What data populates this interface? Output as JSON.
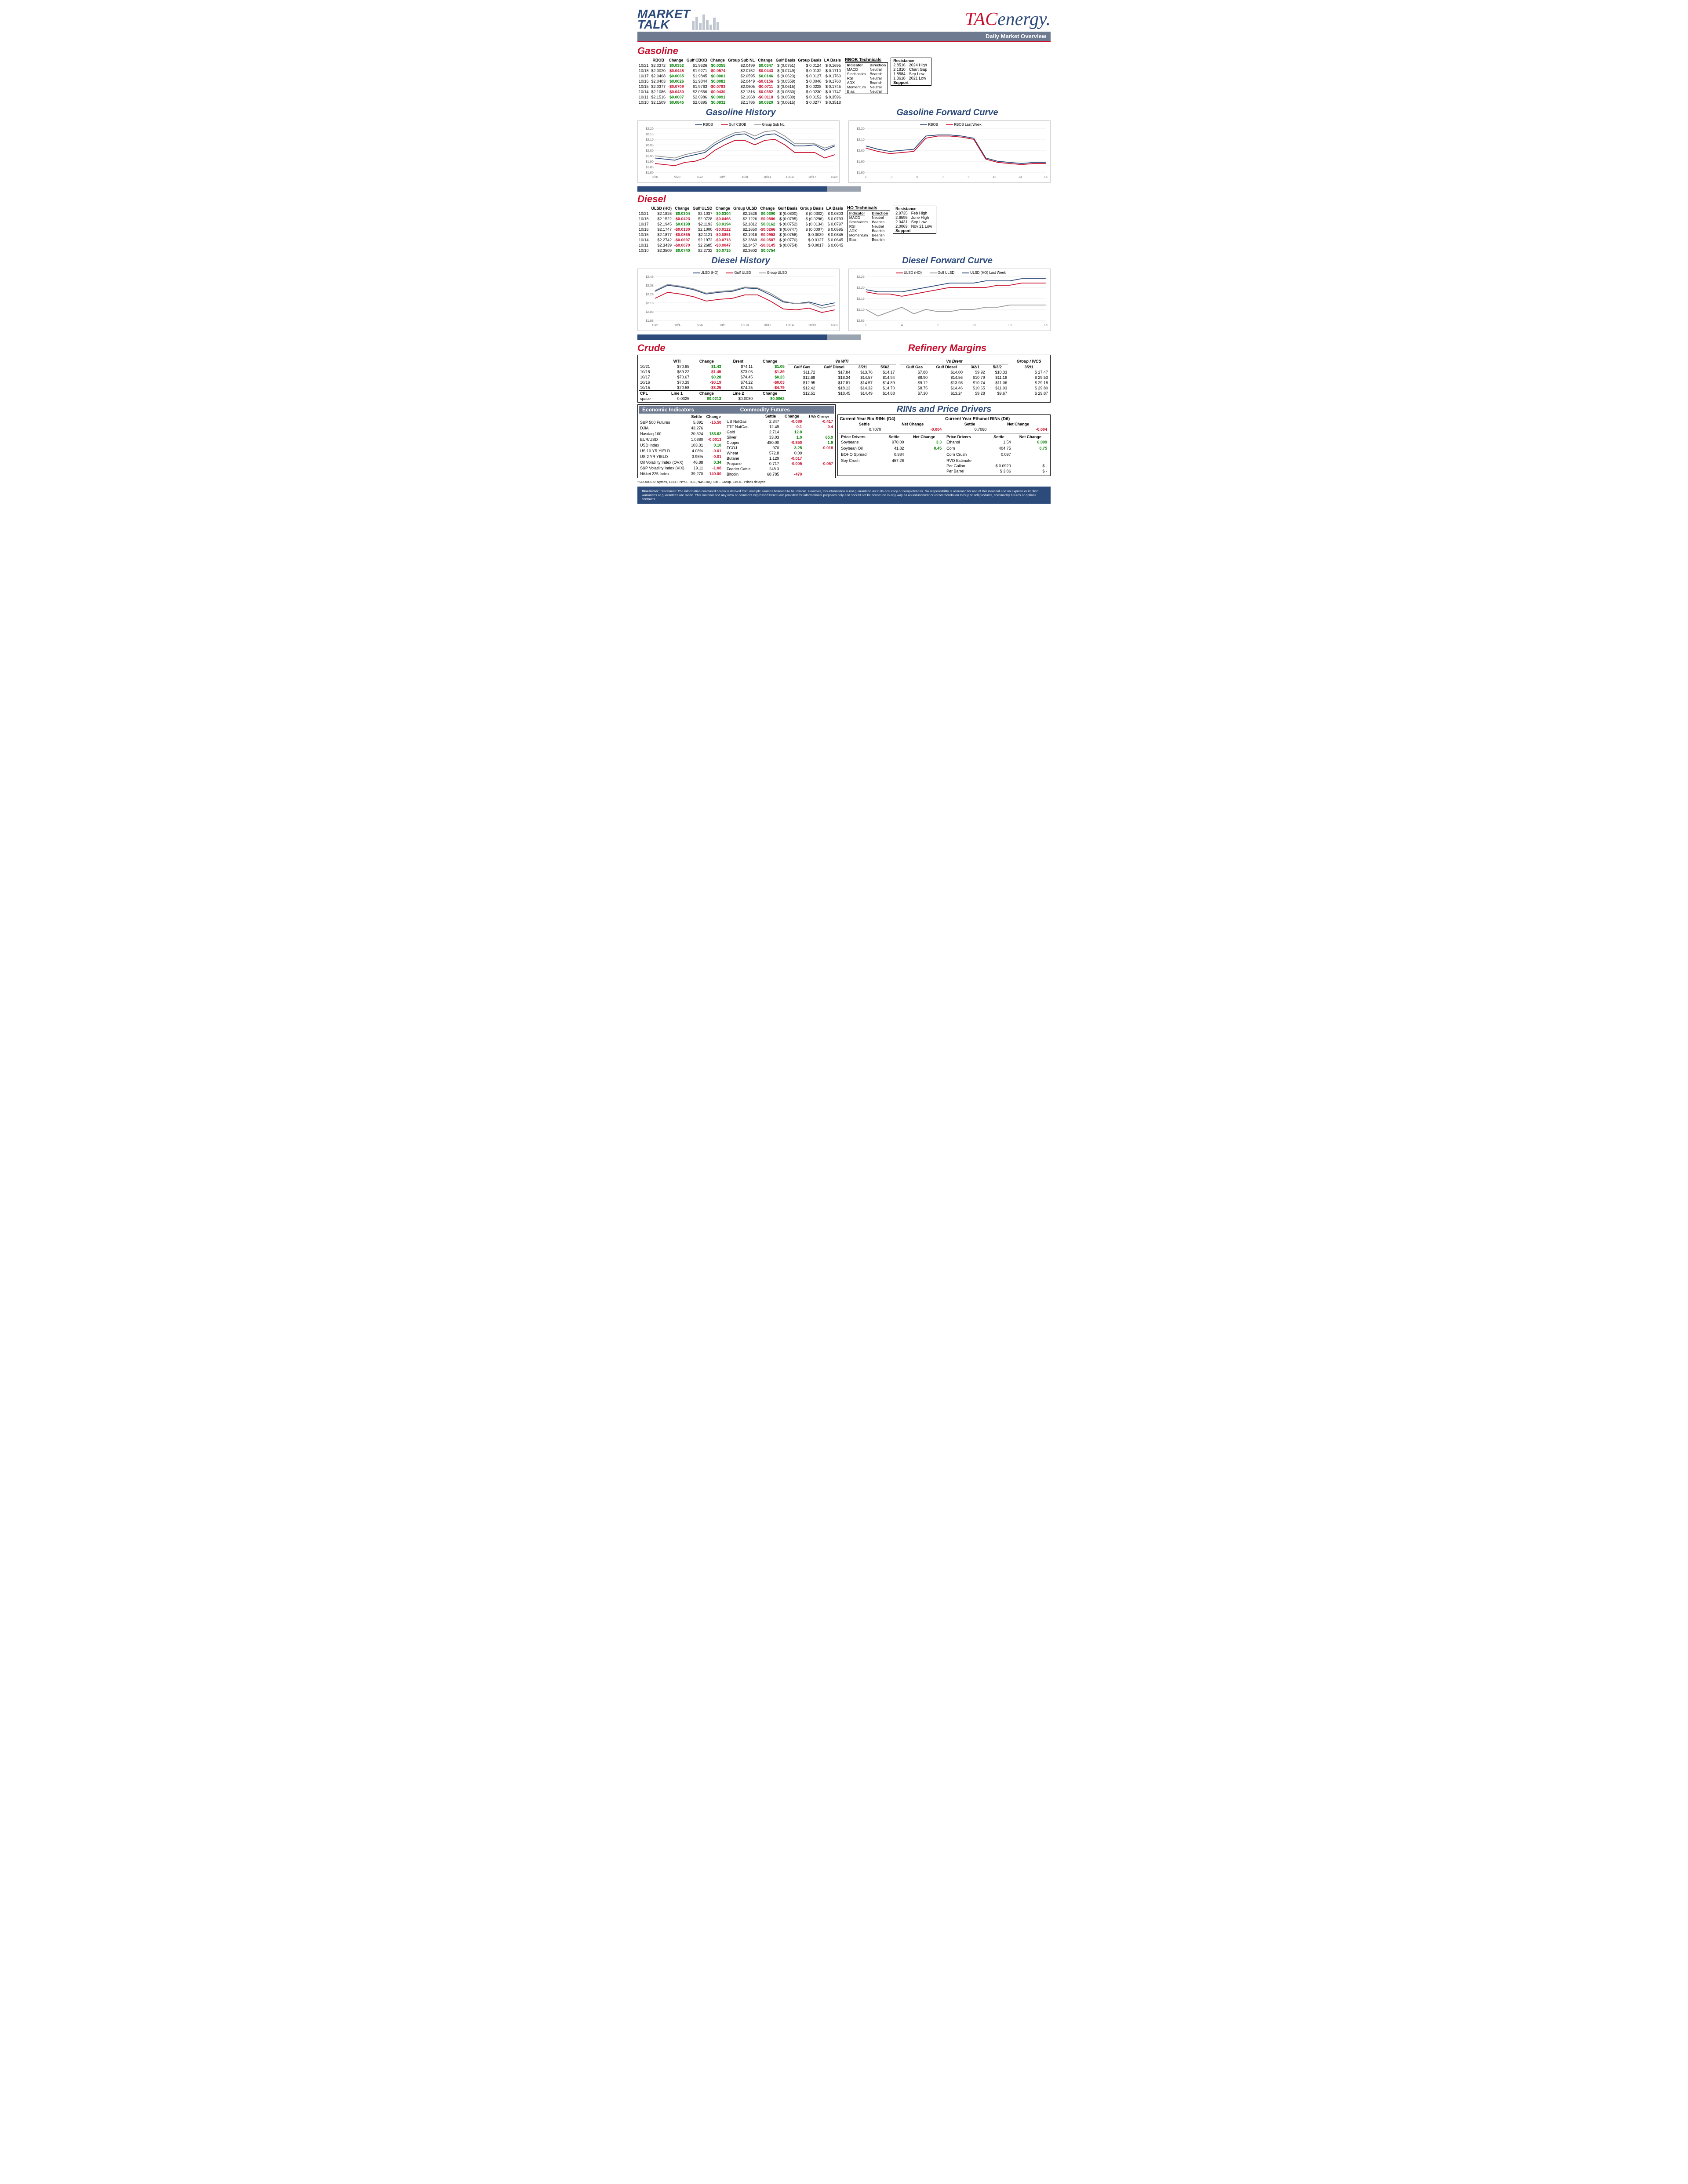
{
  "header": {
    "market_talk_line1": "MARKET",
    "market_talk_line2": "TALK",
    "tac_part1": "TAC",
    "tac_part2": "energy",
    "subtitle": "Daily Market Overview"
  },
  "gasoline": {
    "title": "Gasoline",
    "headers": [
      "",
      "RBOB",
      "Change",
      "Gulf CBOB",
      "Change",
      "Group Sub NL",
      "Change",
      "Gulf Basis",
      "Group Basis",
      "LA Basis"
    ],
    "rows": [
      [
        "10/21",
        "$2.0372",
        "$0.0352",
        "$1.9626",
        "$0.0355",
        "$2.0499",
        "$0.0347",
        "$  (0.0751)",
        "$      0.0124",
        "$   0.1695"
      ],
      [
        "10/18",
        "$2.0020",
        "-$0.0448",
        "$1.9271",
        "-$0.0574",
        "$2.0152",
        "-$0.0443",
        "$  (0.0749)",
        "$      0.0132",
        "$   0.1710"
      ],
      [
        "10/17",
        "$2.0468",
        "$0.0065",
        "$1.9845",
        "$0.0001",
        "$2.0595",
        "$0.0146",
        "$  (0.0623)",
        "$      0.0127",
        "$   0.1760"
      ],
      [
        "10/16",
        "$2.0403",
        "$0.0026",
        "$1.9844",
        "$0.0081",
        "$2.0449",
        "-$0.0156",
        "$  (0.0559)",
        "$      0.0046",
        "$   0.1760"
      ],
      [
        "10/15",
        "$2.0377",
        "-$0.0709",
        "$1.9763",
        "-$0.0793",
        "$2.0605",
        "-$0.0711",
        "$  (0.0615)",
        "$      0.0228",
        "$   0.1745"
      ],
      [
        "10/14",
        "$2.1086",
        "-$0.0430",
        "$2.0556",
        "-$0.0430",
        "$2.1316",
        "-$0.0352",
        "$  (0.0530)",
        "$      0.0230",
        "$   0.1747"
      ],
      [
        "10/11",
        "$2.1516",
        "$0.0007",
        "$2.0986",
        "$0.0091",
        "$2.1668",
        "-$0.0118",
        "$  (0.0530)",
        "$      0.0152",
        "$   0.3596"
      ],
      [
        "10/10",
        "$2.1509",
        "$0.0845",
        "$2.0895",
        "$0.0832",
        "$2.1786",
        "$0.0920",
        "$  (0.0615)",
        "$      0.0277",
        "$   0.3518"
      ]
    ],
    "change_signs": [
      [
        "p",
        "p",
        "p"
      ],
      [
        "n",
        "n",
        "n"
      ],
      [
        "p",
        "p",
        "p"
      ],
      [
        "p",
        "p",
        "n"
      ],
      [
        "n",
        "n",
        "n"
      ],
      [
        "n",
        "n",
        "n"
      ],
      [
        "p",
        "p",
        "n"
      ],
      [
        "p",
        "p",
        "p"
      ]
    ],
    "tech_title": "RBOB Technicals",
    "tech": [
      [
        "Indicator",
        "Direction"
      ],
      [
        "MACD",
        "Neutral"
      ],
      [
        "Stochastics",
        "Bearish"
      ],
      [
        "RSI",
        "Neutral"
      ],
      [
        "ADX",
        "Bearish"
      ],
      [
        "Momentum",
        "Neutral"
      ],
      [
        "Bias:",
        "Neutral"
      ]
    ],
    "resistance": [
      [
        "Resistance",
        ""
      ],
      [
        "2.8516",
        "2024 High"
      ],
      [
        "2.1810",
        "Chart Gap"
      ],
      [
        "1.8584",
        "Sep Low"
      ],
      [
        "1.3618",
        "2021 Low"
      ],
      [
        "Support",
        ""
      ]
    ]
  },
  "gas_history": {
    "title": "Gasoline History",
    "series": [
      {
        "name": "RBOB",
        "color": "#2c4a7a",
        "data": [
          1.93,
          1.92,
          1.91,
          1.94,
          1.96,
          1.98,
          2.05,
          2.1,
          2.14,
          2.15,
          2.1,
          2.14,
          2.15,
          2.1,
          2.04,
          2.04,
          2.05,
          2.0,
          2.04
        ]
      },
      {
        "name": "Gulf CBOB",
        "color": "#c8102e",
        "data": [
          1.88,
          1.87,
          1.86,
          1.89,
          1.9,
          1.93,
          2.0,
          2.05,
          2.09,
          2.09,
          2.05,
          2.09,
          2.1,
          2.05,
          1.98,
          1.98,
          1.98,
          1.93,
          1.96
        ]
      },
      {
        "name": "Group Sub NL",
        "color": "#999999",
        "data": [
          1.95,
          1.94,
          1.93,
          1.96,
          1.98,
          2.0,
          2.07,
          2.12,
          2.16,
          2.17,
          2.13,
          2.17,
          2.18,
          2.13,
          2.06,
          2.06,
          2.06,
          2.02,
          2.05
        ]
      }
    ],
    "ylim": [
      1.8,
      2.2
    ],
    "xlabels": [
      "9/26",
      "9/29",
      "10/2",
      "10/5",
      "10/8",
      "10/11",
      "10/14",
      "10/17",
      "10/20"
    ],
    "yticks": [
      1.8,
      1.85,
      1.9,
      1.95,
      2.0,
      2.05,
      2.1,
      2.15,
      2.2
    ]
  },
  "gas_forward": {
    "title": "Gasoline Forward Curve",
    "series": [
      {
        "name": "RBOB",
        "color": "#2c4a7a",
        "data": [
          2.04,
          2.01,
          1.99,
          2.0,
          2.01,
          2.13,
          2.14,
          2.14,
          2.13,
          2.11,
          1.93,
          1.9,
          1.89,
          1.88,
          1.89,
          1.89
        ]
      },
      {
        "name": "RBOB Last Week",
        "color": "#c8102e",
        "data": [
          2.02,
          1.99,
          1.97,
          1.98,
          1.99,
          2.11,
          2.13,
          2.13,
          2.12,
          2.1,
          1.92,
          1.89,
          1.88,
          1.87,
          1.88,
          1.88
        ]
      }
    ],
    "ylim": [
      1.8,
      2.2
    ],
    "xlabels": [
      "1",
      "3",
      "5",
      "7",
      "9",
      "11",
      "13",
      "15"
    ],
    "yticks": [
      1.8,
      1.9,
      2.0,
      2.1,
      2.2
    ]
  },
  "diesel": {
    "title": "Diesel",
    "headers": [
      "",
      "ULSD (HO)",
      "Change",
      "Gulf ULSD",
      "Change",
      "Group ULSD",
      "Change",
      "Gulf Basis",
      "Group Basis",
      "LA Basis"
    ],
    "rows": [
      [
        "10/21",
        "$2.1826",
        "$0.0304",
        "$2.1037",
        "$0.0304",
        "$2.1526",
        "$0.0300",
        "$  (0.0800)",
        "$    (0.0302)",
        "$   0.0803"
      ],
      [
        "10/18",
        "$2.1522",
        "-$0.0423",
        "$2.0728",
        "-$0.0466",
        "$2.1226",
        "-$0.0586",
        "$  (0.0795)",
        "$    (0.0296)",
        "$   0.0793"
      ],
      [
        "10/17",
        "$2.1945",
        "$0.0198",
        "$2.1193",
        "$0.0194",
        "$2.1812",
        "$0.0162",
        "$  (0.0752)",
        "$    (0.0134)",
        "$   0.0797"
      ],
      [
        "10/16",
        "$2.1747",
        "-$0.0130",
        "$2.1000",
        "-$0.0122",
        "$2.1650",
        "-$0.0266",
        "$  (0.0747)",
        "$    (0.0097)",
        "$   0.0595"
      ],
      [
        "10/15",
        "$2.1877",
        "-$0.0865",
        "$2.1121",
        "-$0.0851",
        "$2.1916",
        "-$0.0953",
        "$  (0.0756)",
        "$      0.0039",
        "$   0.0845"
      ],
      [
        "10/14",
        "$2.2742",
        "-$0.0697",
        "$2.1972",
        "-$0.0713",
        "$2.2869",
        "-$0.0587",
        "$  (0.0770)",
        "$      0.0127",
        "$   0.0645"
      ],
      [
        "10/11",
        "$2.3439",
        "-$0.0070",
        "$2.2685",
        "-$0.0047",
        "$2.3457",
        "-$0.0145",
        "$  (0.0754)",
        "$      0.0017",
        "$   0.0645"
      ],
      [
        "10/10",
        "$2.3509",
        "$0.0740",
        "$2.2732",
        "$0.0715",
        "$2.3602",
        "$0.0754",
        "",
        "",
        ""
      ]
    ],
    "change_signs": [
      [
        "p",
        "p",
        "p"
      ],
      [
        "n",
        "n",
        "n"
      ],
      [
        "p",
        "p",
        "p"
      ],
      [
        "n",
        "n",
        "n"
      ],
      [
        "n",
        "n",
        "n"
      ],
      [
        "n",
        "n",
        "n"
      ],
      [
        "n",
        "n",
        "n"
      ],
      [
        "p",
        "p",
        "p"
      ]
    ],
    "tech_title": "HO Technicals",
    "tech": [
      [
        "Indicator",
        "Direction"
      ],
      [
        "MACD",
        "Neutral"
      ],
      [
        "Stochastics",
        "Bearish"
      ],
      [
        "RSI",
        "Neutral"
      ],
      [
        "ADX",
        "Bearish"
      ],
      [
        "Momentum",
        "Bearish"
      ],
      [
        "Bias:",
        "Bearish"
      ]
    ],
    "resistance": [
      [
        "Resistance",
        ""
      ],
      [
        "2.9735",
        "Feb High"
      ],
      [
        "2.6595",
        "June High"
      ],
      [
        "2.0431",
        "Sep Low"
      ],
      [
        "2.0069",
        "Nov 21 Low"
      ],
      [
        "Support",
        ""
      ]
    ]
  },
  "diesel_history": {
    "title": "Diesel History",
    "series": [
      {
        "name": "ULSD (HO)",
        "color": "#2c4a7a",
        "data": [
          2.31,
          2.38,
          2.36,
          2.33,
          2.28,
          2.3,
          2.31,
          2.35,
          2.34,
          2.27,
          2.19,
          2.17,
          2.19,
          2.15,
          2.18
        ]
      },
      {
        "name": "Gulf ULSD",
        "color": "#c8102e",
        "data": [
          2.23,
          2.3,
          2.28,
          2.25,
          2.2,
          2.22,
          2.23,
          2.27,
          2.27,
          2.2,
          2.11,
          2.1,
          2.12,
          2.07,
          2.1
        ]
      },
      {
        "name": "Group ULSD",
        "color": "#999999",
        "data": [
          2.32,
          2.39,
          2.37,
          2.34,
          2.29,
          2.31,
          2.32,
          2.36,
          2.35,
          2.29,
          2.2,
          2.17,
          2.18,
          2.12,
          2.15
        ]
      }
    ],
    "ylim": [
      1.98,
      2.48
    ],
    "xlabels": [
      "10/2",
      "10/4",
      "10/6",
      "10/8",
      "10/10",
      "10/12",
      "10/14",
      "10/16",
      "10/18"
    ],
    "yticks": [
      1.98,
      2.08,
      2.18,
      2.28,
      2.38,
      2.48
    ]
  },
  "diesel_forward": {
    "title": "Diesel Forward Curve",
    "series": [
      {
        "name": "ULSD (HO)",
        "color": "#c8102e",
        "data": [
          2.18,
          2.17,
          2.17,
          2.16,
          2.17,
          2.18,
          2.19,
          2.2,
          2.2,
          2.2,
          2.2,
          2.21,
          2.21,
          2.22,
          2.22,
          2.22
        ]
      },
      {
        "name": "Gulf ULSD",
        "color": "#999999",
        "data": [
          2.1,
          2.07,
          2.09,
          2.11,
          2.08,
          2.1,
          2.09,
          2.09,
          2.1,
          2.1,
          2.11,
          2.11,
          2.12,
          2.12,
          2.12,
          2.12
        ]
      },
      {
        "name": "ULSD (HO) Last Week",
        "color": "#2c4a7a",
        "data": [
          2.19,
          2.18,
          2.18,
          2.18,
          2.19,
          2.2,
          2.21,
          2.22,
          2.22,
          2.22,
          2.23,
          2.23,
          2.23,
          2.24,
          2.24,
          2.24
        ]
      }
    ],
    "ylim": [
      2.05,
      2.25
    ],
    "xlabels": [
      "1",
      "4",
      "7",
      "10",
      "13",
      "16"
    ],
    "yticks": [
      2.05,
      2.1,
      2.15,
      2.2,
      2.25
    ]
  },
  "crude": {
    "title": "Crude",
    "headers": [
      "",
      "WTI",
      "Change",
      "Brent",
      "Change"
    ],
    "rows": [
      [
        "10/21",
        "$70.65",
        "$1.43",
        "$74.11",
        "$1.05"
      ],
      [
        "10/18",
        "$69.22",
        "-$1.45",
        "$73.06",
        "-$1.39"
      ],
      [
        "10/17",
        "$70.67",
        "$0.28",
        "$74.45",
        "$0.23"
      ],
      [
        "10/16",
        "$70.39",
        "-$0.19",
        "$74.22",
        "-$0.03"
      ],
      [
        "10/15",
        "$70.58",
        "-$3.25",
        "$74.25",
        "-$4.79"
      ]
    ],
    "change_signs": [
      [
        "p",
        "p"
      ],
      [
        "n",
        "n"
      ],
      [
        "p",
        "p"
      ],
      [
        "n",
        "n"
      ],
      [
        "n",
        "n"
      ]
    ],
    "cpl": [
      "CPL",
      "Line 1",
      "Change",
      "Line 2",
      "Change"
    ],
    "cpl_row": [
      "space",
      "0.0325",
      "$0.0213",
      "$0.0080",
      "$0.0062"
    ],
    "cpl_signs": [
      "",
      "",
      "p",
      "",
      "p"
    ]
  },
  "refinery": {
    "title": "Refinery Margins",
    "head_groups": [
      "Vs WTI",
      "Vs Brent",
      "Group / WCS"
    ],
    "headers": [
      "Gulf Gas",
      "Gulf Diesel",
      "3/2/1",
      "5/3/2",
      "Gulf Gas",
      "Gulf Diesel",
      "3/2/1",
      "5/3/2",
      "3/2/1"
    ],
    "rows": [
      [
        "$11.72",
        "$17.84",
        "$13.76",
        "$14.17",
        "$7.88",
        "$14.00",
        "$9.92",
        "$10.33",
        "$       27.47"
      ],
      [
        "$12.68",
        "$18.34",
        "$14.57",
        "$14.94",
        "$8.90",
        "$14.56",
        "$10.79",
        "$11.16",
        "$       29.53"
      ],
      [
        "$12.95",
        "$17.81",
        "$14.57",
        "$14.89",
        "$9.12",
        "$13.98",
        "$10.74",
        "$11.06",
        "$       29.18"
      ],
      [
        "$12.42",
        "$18.13",
        "$14.32",
        "$14.70",
        "$8.75",
        "$14.46",
        "$10.65",
        "$11.03",
        "$       29.80"
      ],
      [
        "$12.51",
        "$18.45",
        "$14.49",
        "$14.88",
        "$7.30",
        "$13.24",
        "$9.28",
        "$9.67",
        "$       29.87"
      ]
    ]
  },
  "econ": {
    "title": "Economic Indicators",
    "rows": [
      [
        "S&P 500 Futures",
        "5,891",
        "-15.50",
        "n"
      ],
      [
        "DJIA",
        "43,276",
        "",
        ""
      ],
      [
        "Nasdaq 100",
        "20,324",
        "133.62",
        "p"
      ],
      [
        "EUR/USD",
        "1.0880",
        "-0.0013",
        "n"
      ],
      [
        "USD Index",
        "103.31",
        "0.10",
        "p"
      ],
      [
        "US 10 YR YIELD",
        "4.08%",
        "-0.01",
        "n"
      ],
      [
        "US 2 YR YIELD",
        "3.95%",
        "-0.01",
        "n"
      ],
      [
        "Oil Volatility Index (OVX)",
        "46.88",
        "0.34",
        "p"
      ],
      [
        "S&P Volatility Index (VIX)",
        "19.11",
        "-1.08",
        "n"
      ],
      [
        "Nikkei 225 Index",
        "39,270",
        "-140.00",
        "n"
      ]
    ]
  },
  "commodity": {
    "title": "Commodity Futures",
    "wk_hdr": "1 Wk Change",
    "rows": [
      [
        "US NatGas",
        "2.347",
        "-0.089",
        "n",
        "-0.417",
        "n"
      ],
      [
        "TTF NatGas",
        "12.49",
        "-0.1",
        "n",
        "-0.4",
        "n"
      ],
      [
        "Gold",
        "2,714",
        "12.8",
        "p",
        "",
        ""
      ],
      [
        "Silver",
        "33.03",
        "1.0",
        "p",
        "65.9",
        "p"
      ],
      [
        "Copper",
        "480.00",
        "-0.850",
        "n",
        "1.9",
        "p"
      ],
      [
        "FCOJ",
        "970",
        "3.25",
        "p",
        "-0.018",
        "n"
      ],
      [
        "Wheat",
        "572.8",
        "0.00",
        "",
        "",
        ""
      ],
      [
        "Butane",
        "1.129",
        "-0.017",
        "n",
        "",
        ""
      ],
      [
        "Propane",
        "0.717",
        "-0.005",
        "n",
        "-0.057",
        "n"
      ],
      [
        "Feeder Cattle",
        "248.3",
        "",
        "",
        "",
        ""
      ],
      [
        "Bitcoin",
        "68,785",
        "-470",
        "n",
        "",
        ""
      ]
    ]
  },
  "rins": {
    "title": "RINs and Price Drivers",
    "d4_title": "Current Year Bio RINs (D4)",
    "d6_title": "Current Year Ethanol RINs (D6)",
    "d4": [
      "",
      "0.7070",
      "-0.004",
      "n"
    ],
    "d6": [
      "",
      "0.7060",
      "-0.004",
      "n"
    ],
    "left_rows": [
      [
        "Soybeans",
        "970.00",
        "3.3",
        "p"
      ],
      [
        "",
        "",
        "",
        ""
      ],
      [
        "Soybean Oil",
        "41.82",
        "0.45",
        "p"
      ],
      [
        "",
        "",
        "",
        ""
      ],
      [
        "BOHO Spread",
        "0.984",
        "",
        ""
      ],
      [
        "",
        "",
        "",
        ""
      ],
      [
        "Soy Crush",
        "457.26",
        "",
        ""
      ]
    ],
    "right_rows": [
      [
        "Ethanol",
        "1.54",
        "0.009",
        "p"
      ],
      [
        "",
        "",
        "",
        ""
      ],
      [
        "Corn",
        "404.75",
        "0.75",
        "p"
      ],
      [
        "",
        "",
        "",
        ""
      ],
      [
        "Corn Crush",
        "0.097",
        "",
        ""
      ],
      [
        "",
        "",
        "",
        ""
      ],
      [
        "RVO Estimate",
        "",
        "",
        ""
      ],
      [
        "Per Gallon",
        "$    0.0920",
        "$          -",
        ""
      ],
      [
        "Per Barrel",
        "$        3.86",
        "$          -",
        ""
      ]
    ]
  },
  "sources": "*SOURCES: Nymex, CBOT, NYSE, ICE, NASDAQ, CME Group, CBOE.   Prices delayed.",
  "disclaimer": "Disclaimer: The information contained herein is derived from multiple sources believed to be reliable. However, this information is not guaranteed as to its accuracy or completeness. No responsibility is assumed for use of this material and no express or implied warranties or guarantees are made. This material and any view or comment expressed herein are provided for informational purposes only and should not be construed in any way as an inducement or recommendation to buy or sell products, commodity futures or options contracts."
}
